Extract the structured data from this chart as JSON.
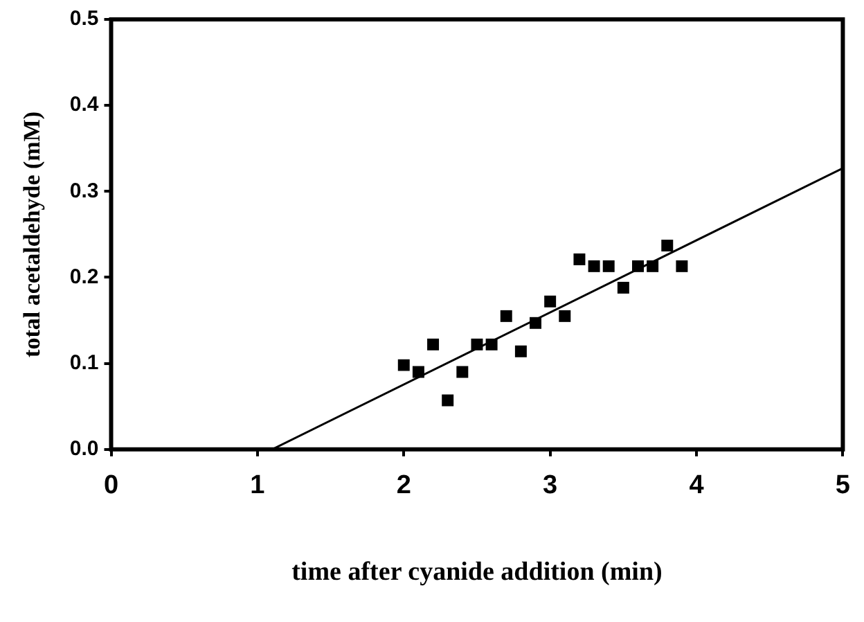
{
  "chart_data": {
    "type": "scatter",
    "xlabel": "time after cyanide addition (min)",
    "ylabel": "total acetaldehyde (mM)",
    "xlim": [
      0,
      5
    ],
    "xticks": [
      0,
      1,
      2,
      3,
      4,
      5
    ],
    "ylim": [
      0,
      0.5
    ],
    "yticks": [
      {
        "value": 0,
        "label": "0.0"
      },
      {
        "value": 0.1,
        "label": "0.1"
      },
      {
        "value": 0.2,
        "label": "0.2"
      },
      {
        "value": 0.3,
        "label": "0.3"
      },
      {
        "value": 0.4,
        "label": "0.4"
      },
      {
        "value": 0.5,
        "label": "0.5"
      }
    ],
    "marker": "square",
    "legend": false,
    "series": [
      {
        "color": "#000000",
        "x": [
          2.0,
          2.1,
          2.2,
          2.3,
          2.4,
          2.5,
          2.6,
          2.7,
          2.8,
          2.9,
          3.0,
          3.1,
          3.2,
          3.3,
          3.4,
          3.5,
          3.6,
          3.7,
          3.8,
          3.9
        ],
        "values": [
          0.098,
          0.09,
          0.122,
          0.057,
          0.09,
          0.122,
          0.122,
          0.155,
          0.114,
          0.147,
          0.172,
          0.155,
          0.221,
          0.213,
          0.213,
          0.188,
          0.213,
          0.213,
          0.237,
          0.213
        ]
      },
      {
        "type": "line",
        "marker": "none",
        "color": "#000000",
        "x": [
          1.1,
          5
        ],
        "values": [
          0,
          0.327
        ]
      }
    ]
  }
}
